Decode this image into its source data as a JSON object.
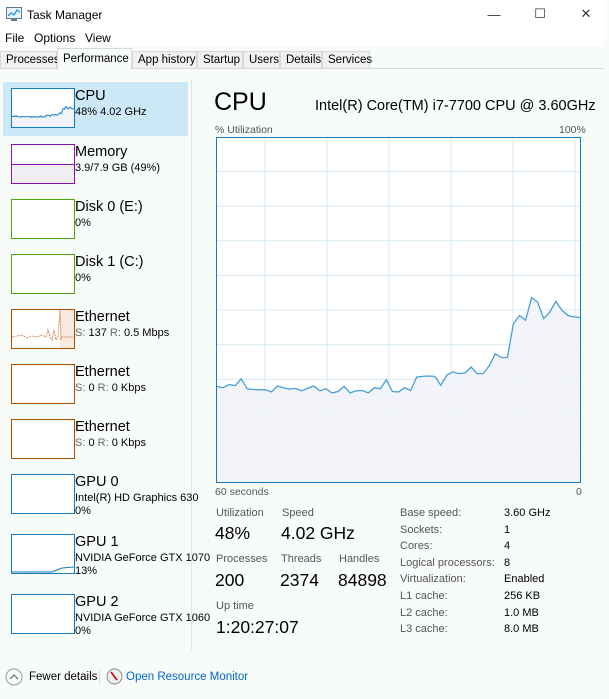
{
  "window": {
    "title": "Task Manager",
    "icon": "task-manager-icon"
  },
  "menu": [
    "File",
    "Options",
    "View"
  ],
  "tabs": [
    {
      "label": "Processes"
    },
    {
      "label": "Performance",
      "active": true
    },
    {
      "label": "App history"
    },
    {
      "label": "Startup"
    },
    {
      "label": "Users"
    },
    {
      "label": "Details"
    },
    {
      "label": "Services"
    }
  ],
  "sidebar": [
    {
      "name": "CPU",
      "sub": "48% 4.02 GHz",
      "color": "#117dbb",
      "selected": true
    },
    {
      "name": "Memory",
      "sub": "3.9/7.9 GB (49%)",
      "color": "#8b12ae",
      "level": 49
    },
    {
      "name": "Disk 0 (E:)",
      "sub": "0%",
      "color": "#4da60c"
    },
    {
      "name": "Disk 1 (C:)",
      "sub": "0%",
      "color": "#4da60c"
    },
    {
      "name": "Ethernet",
      "sub_s": "S:",
      "sub_sv": "137",
      "sub_r": "R:",
      "sub_rv": "0.5 Mbps",
      "color": "#a74f01"
    },
    {
      "name": "Ethernet",
      "sub_s": "S:",
      "sub_sv": "0",
      "sub_r": "R:",
      "sub_rv": "0 Kbps",
      "color": "#a74f01"
    },
    {
      "name": "Ethernet",
      "sub_s": "S:",
      "sub_sv": "0",
      "sub_r": "R:",
      "sub_rv": "0 Kbps",
      "color": "#a74f01"
    },
    {
      "name": "GPU 0",
      "sub": "Intel(R) HD Graphics 630",
      "sub2": "0%",
      "color": "#117dbb"
    },
    {
      "name": "GPU 1",
      "sub": "NVIDIA GeForce GTX 1070",
      "sub2": "13%",
      "color": "#117dbb"
    },
    {
      "name": "GPU 2",
      "sub": "NVIDIA GeForce GTX 1060",
      "sub2": "0%",
      "color": "#117dbb"
    }
  ],
  "main": {
    "heading": "CPU",
    "model": "Intel(R) Core(TM) i7-7700 CPU @ 3.60GHz",
    "stats": {
      "utilization_label": "Utilization",
      "utilization": "48%",
      "speed_label": "Speed",
      "speed": "4.02 GHz",
      "processes_label": "Processes",
      "processes": "200",
      "threads_label": "Threads",
      "threads": "2374",
      "handles_label": "Handles",
      "handles": "84898",
      "uptime_label": "Up time",
      "uptime": "1:20:27:07"
    },
    "specs": [
      [
        "Base speed:",
        "3.60 GHz"
      ],
      [
        "Sockets:",
        "1"
      ],
      [
        "Cores:",
        "4"
      ],
      [
        "Logical processors:",
        "8"
      ],
      [
        "Virtualization:",
        "Enabled"
      ],
      [
        "L1 cache:",
        "256 KB"
      ],
      [
        "L2 cache:",
        "1.0 MB"
      ],
      [
        "L3 cache:",
        "8.0 MB"
      ]
    ]
  },
  "chart_data": {
    "type": "area",
    "ylabel": "% Utilization",
    "ymax_label": "100%",
    "xlabel_left": "60 seconds",
    "xlabel_right": "0",
    "ylim": [
      0,
      100
    ],
    "xlim": [
      60,
      0
    ],
    "grid": true,
    "color": "#117dbb",
    "fill": "#f1f3fa",
    "values": [
      27.8,
      27.4,
      28.3,
      28,
      30,
      27.1,
      26.9,
      26.8,
      26.8,
      26.2,
      27.9,
      27.4,
      27,
      27.2,
      26.5,
      27.2,
      27.9,
      26.5,
      27.1,
      25.9,
      26.3,
      27.8,
      25.9,
      26.5,
      26.6,
      25.9,
      27.4,
      27.1,
      29.7,
      26.3,
      26.2,
      27.4,
      26.6,
      30.5,
      30.7,
      30.8,
      30.7,
      28.1,
      31.1,
      32,
      31.5,
      31.7,
      33.4,
      31.5,
      31.5,
      33.8,
      37.3,
      36.2,
      36.2,
      46,
      48.4,
      47,
      53.6,
      52.3,
      47.5,
      49.4,
      52.5,
      49.9,
      48.4,
      48,
      47.8
    ]
  },
  "footer": {
    "fewer": "Fewer details",
    "monitor": "Open Resource Monitor"
  }
}
